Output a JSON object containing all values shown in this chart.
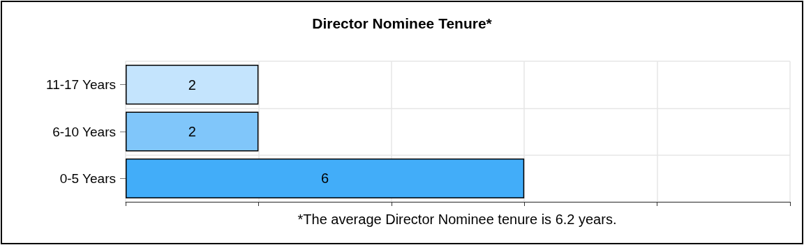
{
  "chart_data": {
    "type": "bar",
    "orientation": "horizontal",
    "title": "Director Nominee Tenure*",
    "categories": [
      "11-17 Years",
      "6-10 Years",
      "0-5 Years"
    ],
    "values": [
      2,
      2,
      6
    ],
    "colors": [
      "#c4e4fd",
      "#80c6fa",
      "#42adf9"
    ],
    "xlim": [
      0,
      10
    ],
    "xticks": [
      {
        "value": 0,
        "label": null
      },
      {
        "value": 2,
        "label": null
      },
      {
        "value": 4,
        "label": null
      },
      {
        "value": 6,
        "label": null
      },
      {
        "value": 8,
        "label": null
      },
      {
        "value": 10,
        "label": null
      }
    ],
    "tick_labels": "y",
    "grid": true,
    "data_labels": true,
    "annotations": [
      "*The average Director Nominee tenure is 6.2 years."
    ]
  }
}
